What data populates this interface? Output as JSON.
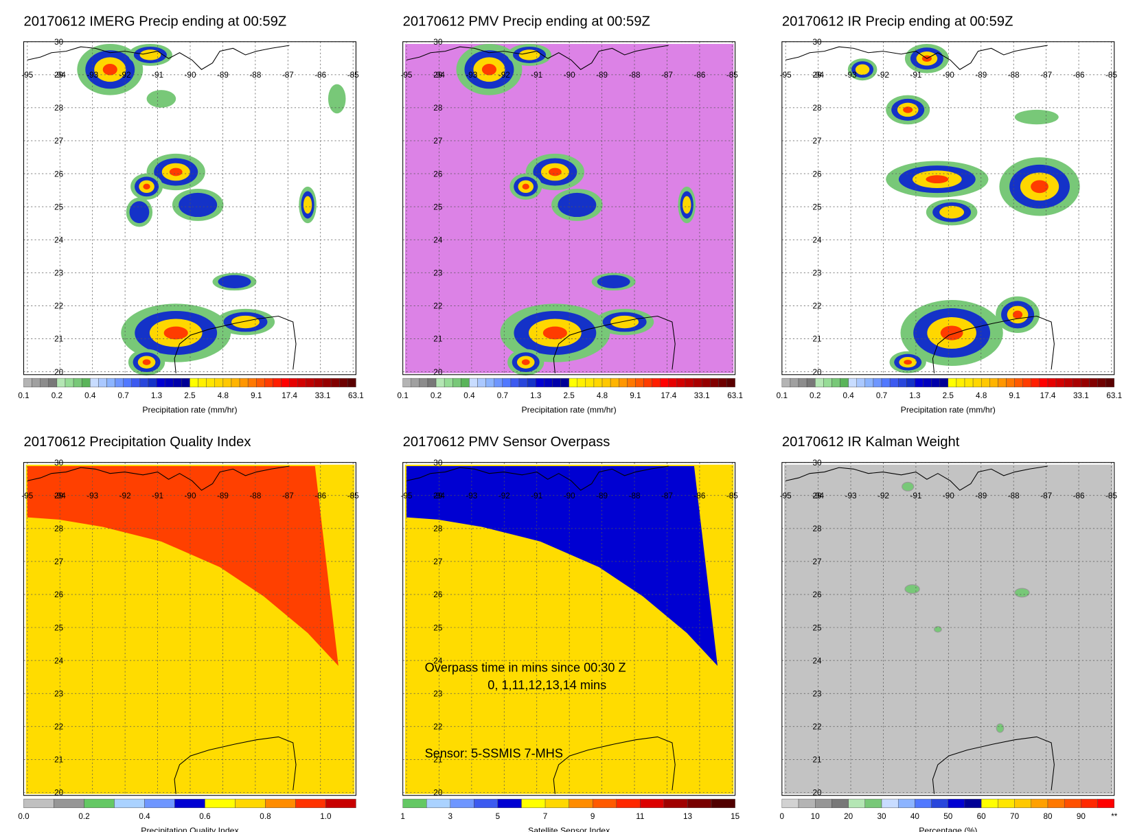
{
  "panels": [
    {
      "title": "20170612 IMERG Precip ending at 00:59Z",
      "background": "#ffffff",
      "lon_ticks": [
        "-95",
        "-94",
        "-93",
        "-92",
        "-91",
        "-90",
        "-89",
        "-88",
        "-87",
        "-86",
        "-85"
      ],
      "lat_ticks": [
        "30",
        "29",
        "28",
        "27",
        "26",
        "25",
        "24",
        "23",
        "22",
        "21",
        "20"
      ],
      "colorbar": {
        "labels": [
          "0.1",
          "0.2",
          "0.4",
          "0.7",
          "1.3",
          "2.5",
          "4.8",
          "9.1",
          "17.4",
          "33.1",
          "63.1"
        ],
        "colors": [
          "#b4b4b4",
          "#a0a0a0",
          "#8c8c8c",
          "#787878",
          "#b4e6b4",
          "#96dc96",
          "#78c878",
          "#5ab45a",
          "#c8dcff",
          "#aac8ff",
          "#8cb4ff",
          "#6e96ff",
          "#5078ff",
          "#3c5af0",
          "#2846dc",
          "#1432c8",
          "#0000d2",
          "#0000be",
          "#0000aa",
          "#000096",
          "#ffff00",
          "#fff000",
          "#ffe600",
          "#ffd700",
          "#ffc800",
          "#ffb400",
          "#ff9600",
          "#ff7800",
          "#ff5a00",
          "#ff3c00",
          "#ff1e00",
          "#ff0000",
          "#e60000",
          "#d20000",
          "#be0000",
          "#aa0000",
          "#960000",
          "#820000",
          "#6e0000",
          "#5a0000"
        ],
        "caption": "Precipitation rate (mm/hr)"
      }
    },
    {
      "title": "20170612 PMV Precip ending at 00:59Z",
      "background": "#dc82e6",
      "lon_ticks": [
        "-95",
        "-94",
        "-93",
        "-92",
        "-91",
        "-90",
        "-89",
        "-88",
        "-87",
        "-86",
        "-85"
      ],
      "lat_ticks": [
        "30",
        "29",
        "28",
        "27",
        "26",
        "25",
        "24",
        "23",
        "22",
        "21",
        "20"
      ],
      "colorbar": {
        "labels": [
          "0.1",
          "0.2",
          "0.4",
          "0.7",
          "1.3",
          "2.5",
          "4.8",
          "9.1",
          "17.4",
          "33.1",
          "63.1"
        ],
        "colors": [
          "#b4b4b4",
          "#a0a0a0",
          "#8c8c8c",
          "#787878",
          "#b4e6b4",
          "#96dc96",
          "#78c878",
          "#5ab45a",
          "#c8dcff",
          "#aac8ff",
          "#8cb4ff",
          "#6e96ff",
          "#5078ff",
          "#3c5af0",
          "#2846dc",
          "#1432c8",
          "#0000d2",
          "#0000be",
          "#0000aa",
          "#000096",
          "#ffff00",
          "#fff000",
          "#ffe600",
          "#ffd700",
          "#ffc800",
          "#ffb400",
          "#ff9600",
          "#ff7800",
          "#ff5a00",
          "#ff3c00",
          "#ff1e00",
          "#ff0000",
          "#e60000",
          "#d20000",
          "#be0000",
          "#aa0000",
          "#960000",
          "#820000",
          "#6e0000",
          "#5a0000"
        ],
        "caption": "Precipitation rate (mm/hr)"
      }
    },
    {
      "title": "20170612 IR Precip ending at 00:59Z",
      "background": "#ffffff",
      "lon_ticks": [
        "-95",
        "-94",
        "-93",
        "-92",
        "-91",
        "-90",
        "-89",
        "-88",
        "-87",
        "-86",
        "-85"
      ],
      "lat_ticks": [
        "30",
        "29",
        "28",
        "27",
        "26",
        "25",
        "24",
        "23",
        "22",
        "21",
        "20"
      ],
      "colorbar": {
        "labels": [
          "0.1",
          "0.2",
          "0.4",
          "0.7",
          "1.3",
          "2.5",
          "4.8",
          "9.1",
          "17.4",
          "33.1",
          "63.1"
        ],
        "colors": [
          "#b4b4b4",
          "#a0a0a0",
          "#8c8c8c",
          "#787878",
          "#b4e6b4",
          "#96dc96",
          "#78c878",
          "#5ab45a",
          "#c8dcff",
          "#aac8ff",
          "#8cb4ff",
          "#6e96ff",
          "#5078ff",
          "#3c5af0",
          "#2846dc",
          "#1432c8",
          "#0000d2",
          "#0000be",
          "#0000aa",
          "#000096",
          "#ffff00",
          "#fff000",
          "#ffe600",
          "#ffd700",
          "#ffc800",
          "#ffb400",
          "#ff9600",
          "#ff7800",
          "#ff5a00",
          "#ff3c00",
          "#ff1e00",
          "#ff0000",
          "#e60000",
          "#d20000",
          "#be0000",
          "#aa0000",
          "#960000",
          "#820000",
          "#6e0000",
          "#5a0000"
        ],
        "caption": "Precipitation rate (mm/hr)"
      }
    },
    {
      "title": "20170612 Precipitation Quality Index",
      "background": "#ffdc00",
      "lon_ticks": [
        "-95",
        "-94",
        "-93",
        "-92",
        "-91",
        "-90",
        "-89",
        "-88",
        "-87",
        "-86",
        "-85"
      ],
      "lat_ticks": [
        "30",
        "29",
        "28",
        "27",
        "26",
        "25",
        "24",
        "23",
        "22",
        "21",
        "20"
      ],
      "colorbar": {
        "labels": [
          "0.0",
          "0.2",
          "0.4",
          "0.6",
          "0.8",
          "1.0"
        ],
        "colors": [
          "#c0c0c0",
          "#969696",
          "#64c864",
          "#aad2ff",
          "#6e96ff",
          "#0000d2",
          "#ffff00",
          "#ffd700",
          "#ff8c00",
          "#ff3200",
          "#c80000"
        ],
        "caption": "Precipitation Quality Index"
      }
    },
    {
      "title": "20170612 PMV Sensor Overpass",
      "background": "#ffdc00",
      "lon_ticks": [
        "-95",
        "-94",
        "-93",
        "-92",
        "-91",
        "-90",
        "-89",
        "-88",
        "-87",
        "-86",
        "-85"
      ],
      "lat_ticks": [
        "30",
        "29",
        "28",
        "27",
        "26",
        "25",
        "24",
        "23",
        "22",
        "21",
        "20"
      ],
      "colorbar": {
        "labels": [
          "1",
          "3",
          "5",
          "7",
          "9",
          "11",
          "13",
          "15"
        ],
        "colors": [
          "#64c864",
          "#aad2ff",
          "#6e96ff",
          "#3c5af0",
          "#0000d2",
          "#ffff00",
          "#ffd700",
          "#ff8c00",
          "#ff5a00",
          "#ff2800",
          "#dc0000",
          "#a00000",
          "#780000",
          "#500000"
        ],
        "caption": "Satellite Sensor Index"
      },
      "annotations": [
        "Overpass time in mins since 00:30 Z",
        "0, 1,11,12,13,14 mins",
        "Sensor:   5-SSMIS  7-MHS"
      ]
    },
    {
      "title": "20170612 IR Kalman Weight",
      "background": "#c3c3c3",
      "lon_ticks": [
        "-95",
        "-94",
        "-93",
        "-92",
        "-91",
        "-90",
        "-89",
        "-88",
        "-87",
        "-86",
        "-85"
      ],
      "lat_ticks": [
        "30",
        "29",
        "28",
        "27",
        "26",
        "25",
        "24",
        "23",
        "22",
        "21",
        "20"
      ],
      "colorbar": {
        "labels": [
          "0",
          "10",
          "20",
          "30",
          "40",
          "50",
          "60",
          "70",
          "80",
          "90",
          "**"
        ],
        "colors": [
          "#d2d2d2",
          "#b4b4b4",
          "#969696",
          "#787878",
          "#b4e6b4",
          "#78c878",
          "#c8dcff",
          "#8cb4ff",
          "#5078ff",
          "#2846dc",
          "#0000d2",
          "#000096",
          "#ffff00",
          "#ffe600",
          "#ffc800",
          "#ffa000",
          "#ff7800",
          "#ff5000",
          "#ff2800",
          "#ff0000"
        ],
        "caption": "Percentage (%)"
      }
    }
  ]
}
